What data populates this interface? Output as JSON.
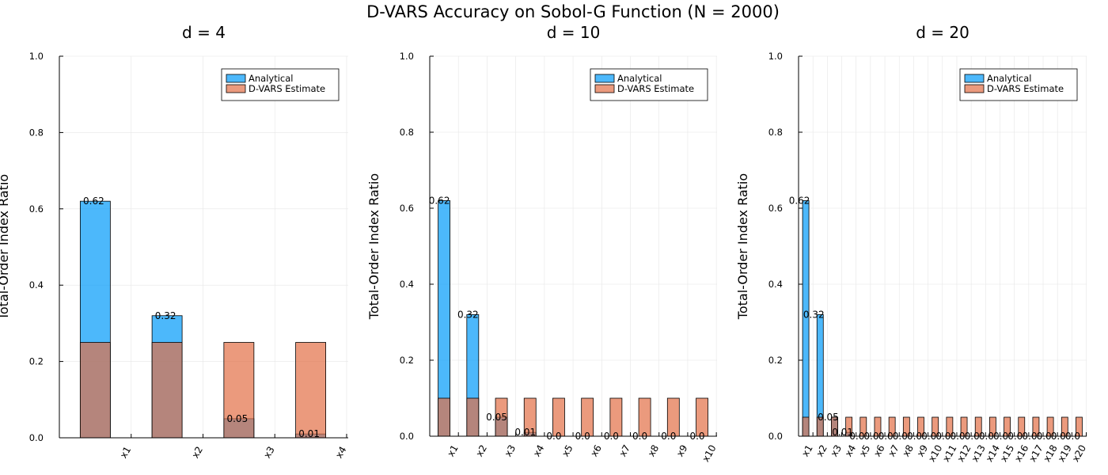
{
  "suptitle": "D-VARS Accuracy on Sobol-G Function (N = 2000)",
  "colors": {
    "analytical": "#009af9",
    "estimate": "#e26f46",
    "grid": "#e6e6e6",
    "axis": "#000000"
  },
  "chart_data": [
    {
      "type": "bar",
      "title": "d = 4",
      "ylabel": "Total-Order Index Ratio",
      "ylim": [
        0,
        1
      ],
      "yticks": [
        "0.0",
        "0.2",
        "0.4",
        "0.6",
        "0.8",
        "1.0"
      ],
      "categories": [
        "x1",
        "x2",
        "x3",
        "x4"
      ],
      "legend_position": "top-right",
      "series": [
        {
          "name": "Analytical",
          "values": [
            0.62,
            0.32,
            0.05,
            0.01
          ],
          "labels": [
            "0.62",
            "0.32",
            "0.05",
            "0.01"
          ]
        },
        {
          "name": "D-VARS Estimate",
          "values": [
            0.25,
            0.25,
            0.25,
            0.25
          ]
        }
      ]
    },
    {
      "type": "bar",
      "title": "d = 10",
      "ylabel": "Total-Order Index Ratio",
      "ylim": [
        0,
        1
      ],
      "yticks": [
        "0.0",
        "0.2",
        "0.4",
        "0.6",
        "0.8",
        "1.0"
      ],
      "categories": [
        "x1",
        "x2",
        "x3",
        "x4",
        "x5",
        "x6",
        "x7",
        "x8",
        "x9",
        "x10"
      ],
      "legend_position": "top-right",
      "series": [
        {
          "name": "Analytical",
          "values": [
            0.62,
            0.32,
            0.05,
            0.01,
            0,
            0,
            0,
            0,
            0,
            0
          ],
          "labels": [
            "0.62",
            "0.32",
            "0.05",
            "0.01",
            "0.0",
            "0.0",
            "0.0",
            "0.0",
            "0.0",
            "0.0"
          ]
        },
        {
          "name": "D-VARS Estimate",
          "values": [
            0.1,
            0.1,
            0.1,
            0.1,
            0.1,
            0.1,
            0.1,
            0.1,
            0.1,
            0.1
          ]
        }
      ]
    },
    {
      "type": "bar",
      "title": "d = 20",
      "ylabel": "Total-Order Index Ratio",
      "ylim": [
        0,
        1
      ],
      "yticks": [
        "0.0",
        "0.2",
        "0.4",
        "0.6",
        "0.8",
        "1.0"
      ],
      "categories": [
        "x1",
        "x2",
        "x3",
        "x4",
        "x5",
        "x6",
        "x7",
        "x8",
        "x9",
        "x10",
        "x11",
        "x12",
        "x13",
        "x14",
        "x15",
        "x16",
        "x17",
        "x18",
        "x19",
        "x20"
      ],
      "legend_position": "top-right",
      "series": [
        {
          "name": "Analytical",
          "values": [
            0.62,
            0.32,
            0.05,
            0.01,
            0,
            0,
            0,
            0,
            0,
            0,
            0,
            0,
            0,
            0,
            0,
            0,
            0,
            0,
            0,
            0
          ],
          "labels": [
            "0.62",
            "0.32",
            "0.05",
            "0.01",
            "0.0",
            "0.0",
            "0.0",
            "0.0",
            "0.0",
            "0.0",
            "0.0",
            "0.0",
            "0.0",
            "0.0",
            "0.0",
            "0.0",
            "0.0",
            "0.0",
            "0.0",
            "0.0"
          ]
        },
        {
          "name": "D-VARS Estimate",
          "values": [
            0.05,
            0.05,
            0.05,
            0.05,
            0.05,
            0.05,
            0.05,
            0.05,
            0.05,
            0.05,
            0.05,
            0.05,
            0.05,
            0.05,
            0.05,
            0.05,
            0.05,
            0.05,
            0.05,
            0.05
          ]
        }
      ]
    }
  ]
}
